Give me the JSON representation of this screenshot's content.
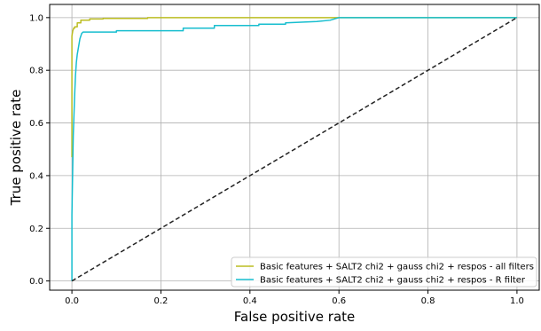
{
  "chart_data": {
    "type": "line",
    "xlabel": "False positive rate",
    "ylabel": "True positive rate",
    "xlim": [
      -0.05,
      1.05
    ],
    "ylim": [
      -0.035,
      1.05
    ],
    "xticks": [
      "0.0",
      "0.2",
      "0.4",
      "0.6",
      "0.8",
      "1.0"
    ],
    "yticks": [
      "0.0",
      "0.2",
      "0.4",
      "0.6",
      "0.8",
      "1.0"
    ],
    "grid": true,
    "legend_position": "lower-right",
    "series": [
      {
        "name": "Basic features + SALT2 chi2 + gauss chi2 + respos - all filters",
        "color": "#bcbd22",
        "x": [
          0.0,
          0.0,
          0.002,
          0.004,
          0.006,
          0.006,
          0.012,
          0.012,
          0.02,
          0.02,
          0.04,
          0.04,
          0.07,
          0.07,
          0.17,
          0.17,
          0.59,
          0.59,
          1.0
        ],
        "y": [
          0.47,
          0.93,
          0.95,
          0.96,
          0.96,
          0.965,
          0.965,
          0.98,
          0.98,
          0.99,
          0.99,
          0.995,
          0.995,
          0.997,
          0.997,
          1.0,
          1.0,
          1.0,
          1.0
        ]
      },
      {
        "name": "Basic features + SALT2 chi2 + gauss chi2 + respos - R filter",
        "color": "#17becf",
        "x": [
          0.0,
          0.0,
          0.003,
          0.006,
          0.008,
          0.01,
          0.012,
          0.015,
          0.018,
          0.02,
          0.022,
          0.025,
          0.028,
          0.03,
          0.05,
          0.08,
          0.1,
          0.1,
          0.25,
          0.25,
          0.32,
          0.32,
          0.42,
          0.42,
          0.48,
          0.48,
          0.55,
          0.58,
          0.6,
          1.0
        ],
        "y": [
          0.0,
          0.25,
          0.55,
          0.7,
          0.78,
          0.83,
          0.86,
          0.89,
          0.92,
          0.93,
          0.94,
          0.945,
          0.945,
          0.945,
          0.945,
          0.945,
          0.945,
          0.95,
          0.95,
          0.96,
          0.96,
          0.97,
          0.97,
          0.975,
          0.975,
          0.98,
          0.985,
          0.99,
          1.0,
          1.0
        ]
      },
      {
        "name": "",
        "color": "#222222",
        "dashed": true,
        "x": [
          0.0,
          1.0
        ],
        "y": [
          0.0,
          1.0
        ]
      }
    ]
  }
}
